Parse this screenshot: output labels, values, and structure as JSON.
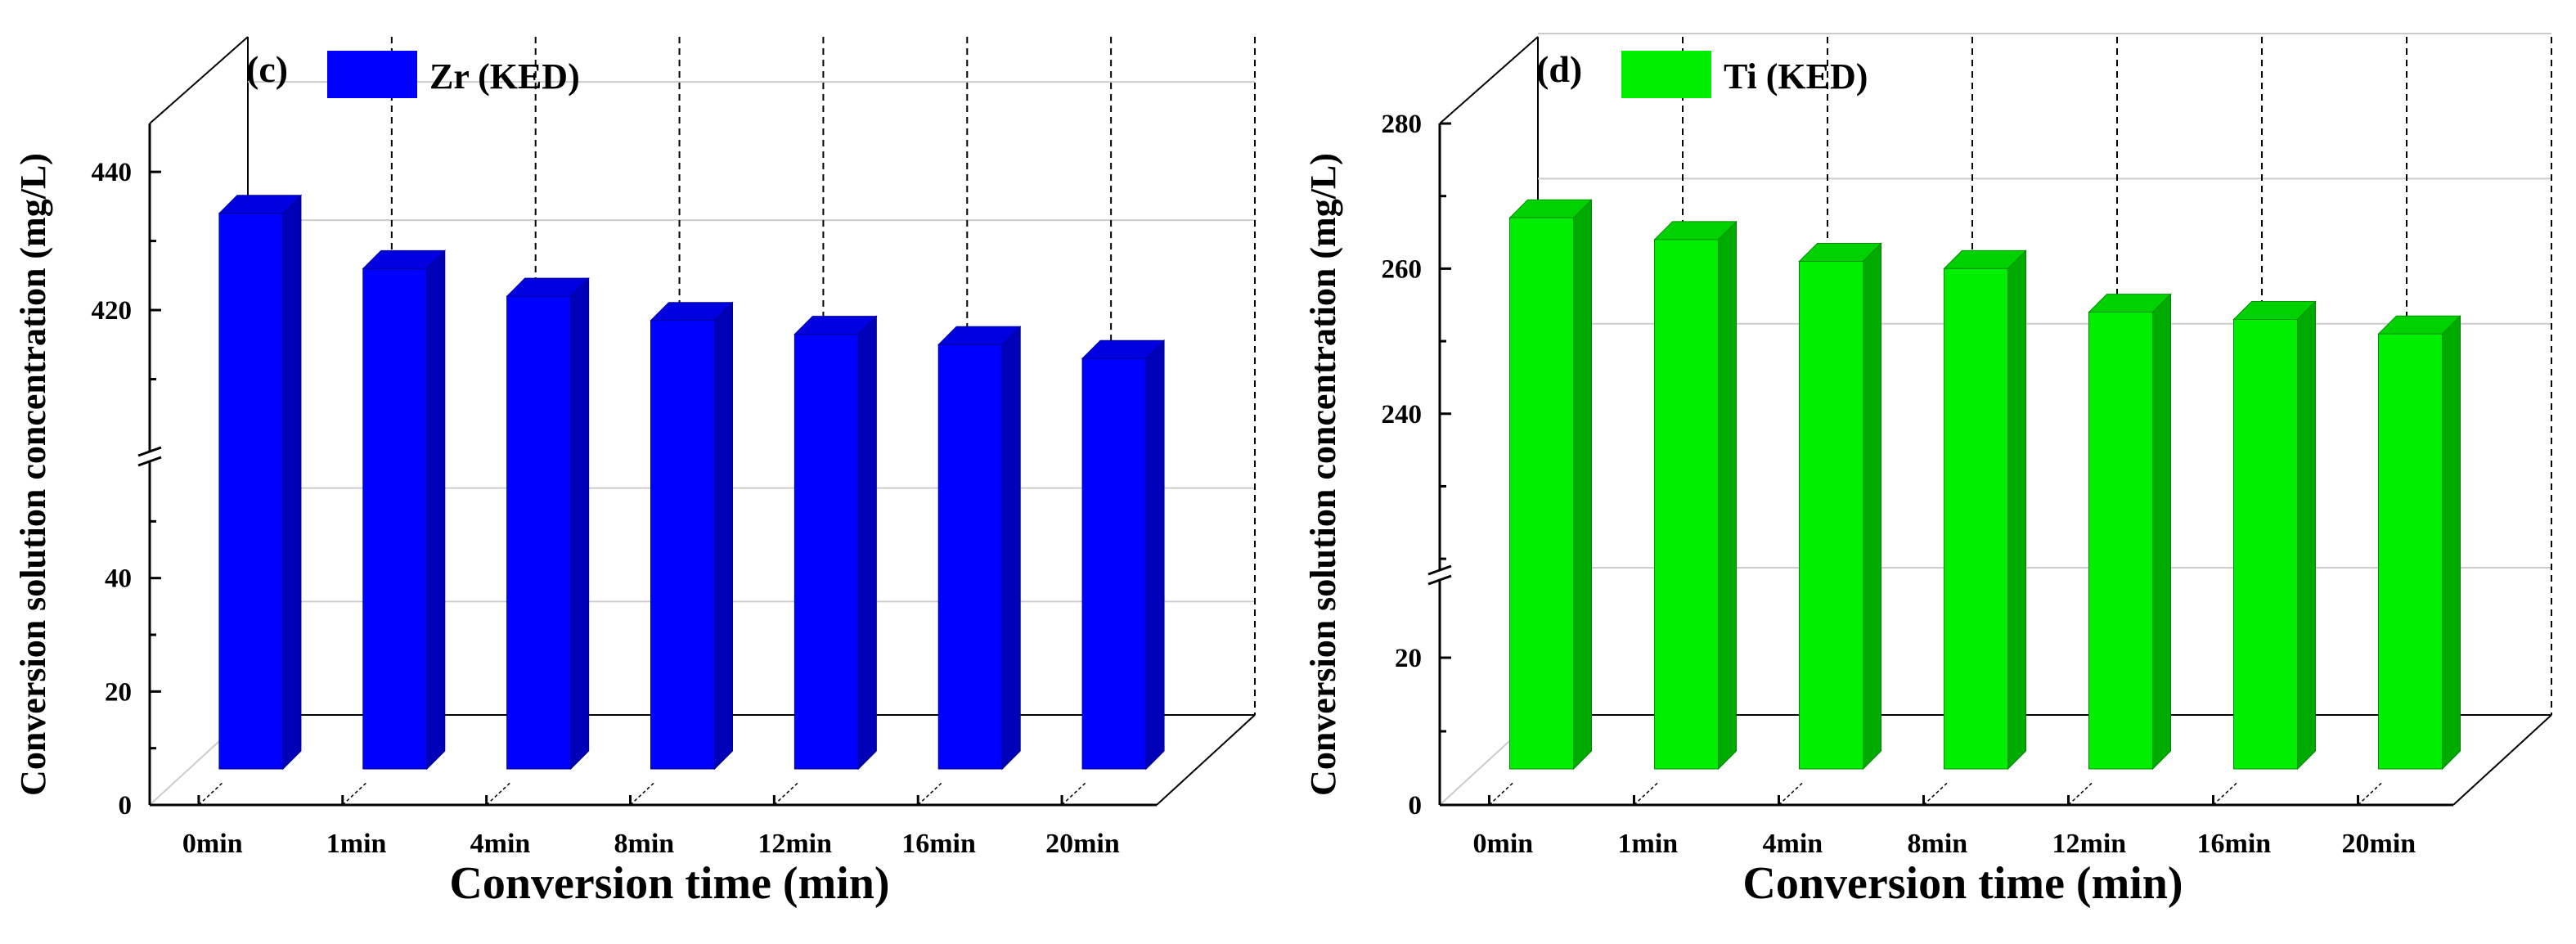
{
  "chart_data": [
    {
      "type": "bar",
      "panel_label": "(c)",
      "title": "",
      "legend": [
        "Zr (KED)"
      ],
      "color": "#0000ff",
      "categories": [
        "0min",
        "1min",
        "4min",
        "8min",
        "12min",
        "16min",
        "20min"
      ],
      "values": [
        434,
        426,
        422,
        418.5,
        416.5,
        415,
        413
      ],
      "xlabel": "Conversion time (min)",
      "ylabel": "Conversion solution concentration (mg/L)",
      "y_broken": true,
      "y_lower_range": [
        0,
        60
      ],
      "y_upper_range": [
        400,
        447
      ],
      "y_lower_ticks": [
        "0",
        "20",
        "40"
      ],
      "y_upper_ticks": [
        "420",
        "440"
      ],
      "legend_position": "top-left"
    },
    {
      "type": "bar",
      "panel_label": "(d)",
      "title": "",
      "legend": [
        "Ti (KED)"
      ],
      "color": "#00ee00",
      "categories": [
        "0min",
        "1min",
        "4min",
        "8min",
        "12min",
        "16min",
        "20min"
      ],
      "values": [
        267,
        264,
        261,
        260,
        254,
        253,
        251
      ],
      "xlabel": "Conversion time (min)",
      "ylabel": "Conversion solution concentration (mg/L)",
      "y_broken": true,
      "y_lower_range": [
        0,
        30
      ],
      "y_upper_range": [
        219,
        280
      ],
      "y_lower_ticks": [
        "0",
        "20"
      ],
      "y_upper_ticks": [
        "240",
        "260",
        "280"
      ],
      "legend_position": "top-left"
    }
  ]
}
